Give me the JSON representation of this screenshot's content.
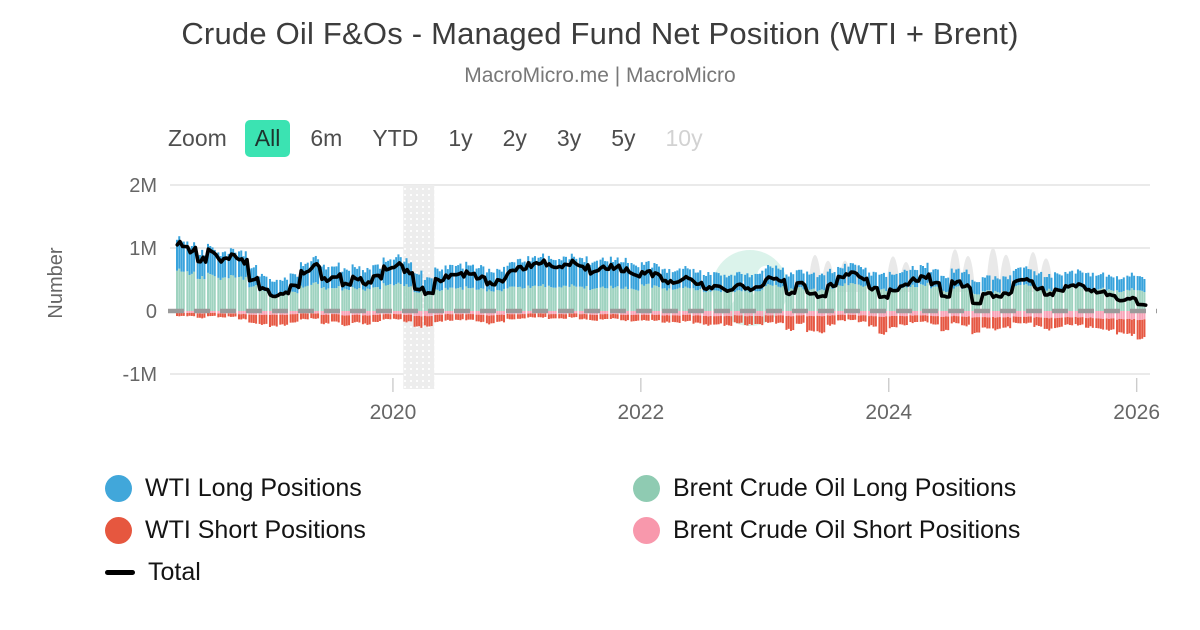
{
  "header": {
    "title": "Crude Oil F&Os - Managed Fund Net Position (WTI + Brent)",
    "subtitle": "MacroMicro.me | MacroMicro"
  },
  "toolbar": {
    "label": "Zoom",
    "buttons": [
      {
        "label": "All",
        "state": "selected"
      },
      {
        "label": "6m",
        "state": "normal"
      },
      {
        "label": "YTD",
        "state": "normal"
      },
      {
        "label": "1y",
        "state": "normal"
      },
      {
        "label": "2y",
        "state": "normal"
      },
      {
        "label": "3y",
        "state": "normal"
      },
      {
        "label": "5y",
        "state": "normal"
      },
      {
        "label": "10y",
        "state": "disabled"
      }
    ]
  },
  "watermark": {
    "name": "macromicro-logo-watermark",
    "circle_color": "#DBF3EB"
  },
  "chart_data": {
    "type": "stacked_bar_line_combo",
    "title": "Crude Oil F&Os - Managed Fund Net Position (WTI + Brent)",
    "xlabel": "",
    "ylabel": "Number",
    "values_in": "millions of contracts",
    "ylim_millions": [
      -1.25,
      2.1
    ],
    "grid": "horizontal",
    "legend_position": "bottom",
    "yticks": [
      {
        "label": "2M",
        "value": 2
      },
      {
        "label": "1M",
        "value": 1
      },
      {
        "label": "0",
        "value": 0
      },
      {
        "label": "-1M",
        "value": -1
      }
    ],
    "xticks": [
      {
        "label": "2020",
        "month": "2020-01"
      },
      {
        "label": "2022",
        "month": "2022-01"
      },
      {
        "label": "2024",
        "month": "2024-01"
      },
      {
        "label": "2026",
        "month": "2026-01"
      }
    ],
    "recession_band": {
      "from": "2020-02",
      "to": "2020-04"
    },
    "categories": [
      "2018-04",
      "2018-05",
      "2018-06",
      "2018-07",
      "2018-08",
      "2018-09",
      "2018-10",
      "2018-11",
      "2018-12",
      "2019-01",
      "2019-02",
      "2019-03",
      "2019-04",
      "2019-05",
      "2019-06",
      "2019-07",
      "2019-08",
      "2019-09",
      "2019-10",
      "2019-11",
      "2019-12",
      "2020-01",
      "2020-02",
      "2020-03",
      "2020-04",
      "2020-05",
      "2020-06",
      "2020-07",
      "2020-08",
      "2020-09",
      "2020-10",
      "2020-11",
      "2020-12",
      "2021-01",
      "2021-02",
      "2021-03",
      "2021-04",
      "2021-05",
      "2021-06",
      "2021-07",
      "2021-08",
      "2021-09",
      "2021-10",
      "2021-11",
      "2021-12",
      "2022-01",
      "2022-02",
      "2022-03",
      "2022-04",
      "2022-05",
      "2022-06",
      "2022-07",
      "2022-08",
      "2022-09",
      "2022-10",
      "2022-11",
      "2022-12",
      "2023-01",
      "2023-02",
      "2023-03",
      "2023-04",
      "2023-05",
      "2023-06",
      "2023-07",
      "2023-08",
      "2023-09",
      "2023-10",
      "2023-11",
      "2023-12",
      "2024-01",
      "2024-02",
      "2024-03",
      "2024-04",
      "2024-05",
      "2024-06",
      "2024-07",
      "2024-08",
      "2024-09",
      "2024-10",
      "2024-11",
      "2024-12",
      "2025-01",
      "2025-02",
      "2025-03",
      "2025-04",
      "2025-05",
      "2025-06",
      "2025-07",
      "2025-08",
      "2025-09",
      "2025-10",
      "2025-11",
      "2025-12",
      "2026-01"
    ],
    "series": [
      {
        "id": "brent_long",
        "name": "Brent Crude Oil Long Positions",
        "type": "bar",
        "stack": "long",
        "stack_order": 0,
        "color": "#9FD3C0",
        "values": [
          0.64,
          0.6,
          0.52,
          0.58,
          0.52,
          0.55,
          0.53,
          0.39,
          0.32,
          0.25,
          0.26,
          0.3,
          0.39,
          0.44,
          0.36,
          0.37,
          0.34,
          0.36,
          0.34,
          0.37,
          0.42,
          0.43,
          0.4,
          0.3,
          0.26,
          0.33,
          0.36,
          0.36,
          0.37,
          0.35,
          0.32,
          0.33,
          0.38,
          0.37,
          0.39,
          0.4,
          0.38,
          0.39,
          0.4,
          0.38,
          0.35,
          0.37,
          0.38,
          0.36,
          0.34,
          0.42,
          0.39,
          0.35,
          0.35,
          0.37,
          0.34,
          0.31,
          0.32,
          0.3,
          0.32,
          0.31,
          0.32,
          0.41,
          0.39,
          0.34,
          0.37,
          0.35,
          0.33,
          0.37,
          0.41,
          0.43,
          0.4,
          0.35,
          0.34,
          0.34,
          0.37,
          0.39,
          0.42,
          0.38,
          0.31,
          0.38,
          0.36,
          0.27,
          0.32,
          0.3,
          0.31,
          0.4,
          0.41,
          0.36,
          0.33,
          0.35,
          0.37,
          0.38,
          0.35,
          0.35,
          0.33,
          0.31,
          0.34,
          0.32
        ]
      },
      {
        "id": "wti_long",
        "name": "WTI Long Positions",
        "type": "bar",
        "stack": "long",
        "stack_order": 1,
        "color": "#38A3DC",
        "values": [
          0.49,
          0.45,
          0.39,
          0.44,
          0.4,
          0.41,
          0.4,
          0.3,
          0.24,
          0.23,
          0.24,
          0.28,
          0.36,
          0.4,
          0.34,
          0.35,
          0.31,
          0.34,
          0.31,
          0.35,
          0.39,
          0.43,
          0.39,
          0.3,
          0.26,
          0.33,
          0.35,
          0.36,
          0.37,
          0.35,
          0.31,
          0.33,
          0.38,
          0.43,
          0.45,
          0.46,
          0.45,
          0.45,
          0.46,
          0.45,
          0.42,
          0.44,
          0.44,
          0.43,
          0.39,
          0.35,
          0.34,
          0.3,
          0.29,
          0.31,
          0.29,
          0.27,
          0.28,
          0.26,
          0.28,
          0.26,
          0.28,
          0.29,
          0.29,
          0.24,
          0.27,
          0.25,
          0.24,
          0.26,
          0.29,
          0.31,
          0.29,
          0.25,
          0.24,
          0.25,
          0.26,
          0.28,
          0.3,
          0.27,
          0.23,
          0.27,
          0.26,
          0.2,
          0.23,
          0.22,
          0.23,
          0.27,
          0.27,
          0.24,
          0.22,
          0.24,
          0.25,
          0.25,
          0.24,
          0.23,
          0.22,
          0.21,
          0.23,
          0.22
        ]
      },
      {
        "id": "brent_short",
        "name": "Brent Crude Oil Short Positions",
        "type": "bar",
        "stack": "short",
        "stack_order": 0,
        "color": "#F8A4B8",
        "values": [
          -0.03,
          -0.03,
          -0.04,
          -0.03,
          -0.04,
          -0.04,
          -0.05,
          -0.06,
          -0.06,
          -0.06,
          -0.06,
          -0.05,
          -0.04,
          -0.04,
          -0.06,
          -0.05,
          -0.07,
          -0.06,
          -0.07,
          -0.06,
          -0.05,
          -0.05,
          -0.06,
          -0.08,
          -0.08,
          -0.06,
          -0.05,
          -0.05,
          -0.05,
          -0.06,
          -0.07,
          -0.06,
          -0.05,
          -0.05,
          -0.04,
          -0.04,
          -0.05,
          -0.05,
          -0.04,
          -0.05,
          -0.06,
          -0.05,
          -0.05,
          -0.06,
          -0.06,
          -0.06,
          -0.06,
          -0.07,
          -0.07,
          -0.06,
          -0.07,
          -0.08,
          -0.08,
          -0.08,
          -0.07,
          -0.08,
          -0.08,
          -0.07,
          -0.07,
          -0.08,
          -0.07,
          -0.08,
          -0.08,
          -0.07,
          -0.06,
          -0.06,
          -0.07,
          -0.08,
          -0.09,
          -0.08,
          -0.08,
          -0.07,
          -0.07,
          -0.08,
          -0.09,
          -0.08,
          -0.09,
          -0.1,
          -0.1,
          -0.1,
          -0.1,
          -0.09,
          -0.09,
          -0.1,
          -0.11,
          -0.11,
          -0.1,
          -0.1,
          -0.11,
          -0.12,
          -0.12,
          -0.13,
          -0.13,
          -0.14
        ]
      },
      {
        "id": "wti_short",
        "name": "WTI Short Positions",
        "type": "bar",
        "stack": "short",
        "stack_order": 1,
        "color": "#E65843",
        "values": [
          -0.05,
          -0.05,
          -0.07,
          -0.05,
          -0.06,
          -0.05,
          -0.08,
          -0.13,
          -0.15,
          -0.18,
          -0.16,
          -0.13,
          -0.09,
          -0.08,
          -0.14,
          -0.12,
          -0.16,
          -0.12,
          -0.14,
          -0.11,
          -0.08,
          -0.08,
          -0.11,
          -0.17,
          -0.16,
          -0.11,
          -0.1,
          -0.09,
          -0.09,
          -0.11,
          -0.13,
          -0.11,
          -0.08,
          -0.07,
          -0.06,
          -0.06,
          -0.07,
          -0.07,
          -0.06,
          -0.08,
          -0.09,
          -0.08,
          -0.07,
          -0.09,
          -0.1,
          -0.09,
          -0.09,
          -0.11,
          -0.11,
          -0.1,
          -0.12,
          -0.14,
          -0.13,
          -0.15,
          -0.12,
          -0.14,
          -0.13,
          -0.11,
          -0.12,
          -0.22,
          -0.13,
          -0.24,
          -0.26,
          -0.15,
          -0.09,
          -0.08,
          -0.1,
          -0.16,
          -0.27,
          -0.18,
          -0.14,
          -0.11,
          -0.1,
          -0.13,
          -0.22,
          -0.11,
          -0.14,
          -0.25,
          -0.17,
          -0.19,
          -0.16,
          -0.1,
          -0.1,
          -0.14,
          -0.18,
          -0.15,
          -0.12,
          -0.12,
          -0.15,
          -0.16,
          -0.18,
          -0.22,
          -0.24,
          -0.3
        ]
      },
      {
        "id": "total",
        "name": "Total",
        "type": "line",
        "color": "#000000",
        "values": [
          1.05,
          0.97,
          0.8,
          0.94,
          0.82,
          0.87,
          0.8,
          0.5,
          0.35,
          0.24,
          0.28,
          0.4,
          0.62,
          0.72,
          0.5,
          0.55,
          0.42,
          0.52,
          0.44,
          0.55,
          0.68,
          0.73,
          0.62,
          0.35,
          0.28,
          0.49,
          0.56,
          0.58,
          0.6,
          0.53,
          0.43,
          0.49,
          0.63,
          0.68,
          0.74,
          0.76,
          0.71,
          0.72,
          0.76,
          0.7,
          0.62,
          0.68,
          0.7,
          0.64,
          0.57,
          0.62,
          0.58,
          0.47,
          0.46,
          0.52,
          0.44,
          0.36,
          0.39,
          0.33,
          0.41,
          0.35,
          0.39,
          0.52,
          0.49,
          0.28,
          0.44,
          0.28,
          0.23,
          0.41,
          0.55,
          0.6,
          0.52,
          0.36,
          0.22,
          0.33,
          0.41,
          0.49,
          0.55,
          0.44,
          0.23,
          0.46,
          0.39,
          0.12,
          0.28,
          0.23,
          0.28,
          0.48,
          0.49,
          0.36,
          0.26,
          0.33,
          0.4,
          0.41,
          0.33,
          0.3,
          0.25,
          0.17,
          0.2,
          0.1
        ]
      }
    ]
  },
  "legend": {
    "columns": [
      {
        "items": [
          {
            "id": "wti_long",
            "label": "WTI Long Positions",
            "swatch": "circle",
            "color": "#41A7DA"
          },
          {
            "id": "wti_short",
            "label": "WTI Short Positions",
            "swatch": "circle",
            "color": "#E6573F"
          },
          {
            "id": "total",
            "label": "Total",
            "swatch": "line",
            "color": "#000000"
          }
        ]
      },
      {
        "items": [
          {
            "id": "brent_long",
            "label": "Brent Crude Oil Long Positions",
            "swatch": "circle",
            "color": "#8FCBB2"
          },
          {
            "id": "brent_short",
            "label": "Brent Crude Oil Short Positions",
            "swatch": "circle",
            "color": "#F898AC"
          }
        ]
      }
    ]
  }
}
